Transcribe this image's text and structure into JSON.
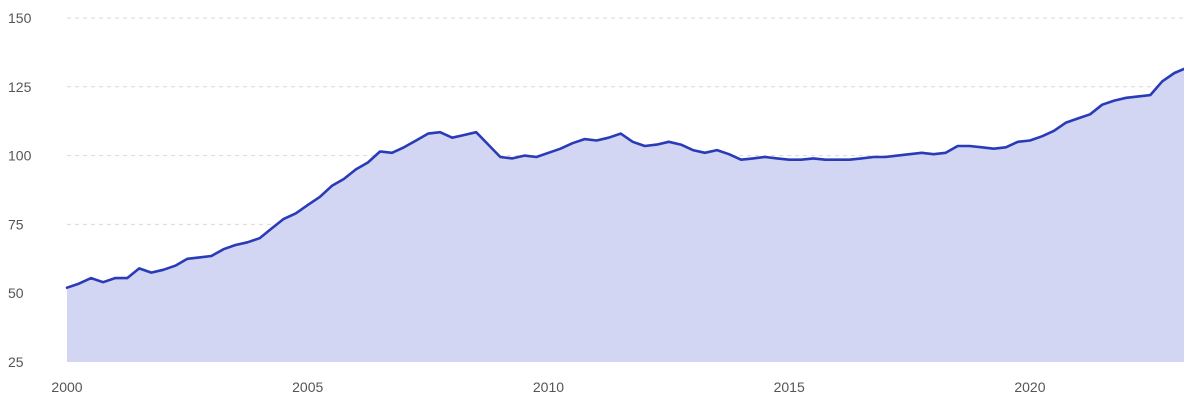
{
  "chart_data": {
    "type": "area",
    "title": "",
    "xlabel": "",
    "ylabel": "",
    "xlim": [
      2000,
      2023.2
    ],
    "ylim": [
      25,
      150
    ],
    "x_ticks": [
      2000,
      2005,
      2010,
      2015,
      2020
    ],
    "x_tick_labels": [
      "2000",
      "2005",
      "2010",
      "2015",
      "2020"
    ],
    "y_ticks": [
      25,
      50,
      75,
      100,
      125,
      150
    ],
    "y_tick_labels": [
      "25",
      "50",
      "75",
      "100",
      "125",
      "150"
    ],
    "grid": true,
    "colors": {
      "line": "#2a3bb8",
      "fill": "#d2d6f2",
      "grid": "#d9d9d9",
      "text": "#555555"
    },
    "series": [
      {
        "x": [
          2000.0,
          2000.25,
          2000.5,
          2000.75,
          2001.0,
          2001.25,
          2001.5,
          2001.75,
          2002.0,
          2002.25,
          2002.5,
          2002.75,
          2003.0,
          2003.25,
          2003.5,
          2003.75,
          2004.0,
          2004.25,
          2004.5,
          2004.75,
          2005.0,
          2005.25,
          2005.5,
          2005.75,
          2006.0,
          2006.25,
          2006.5,
          2006.75,
          2007.0,
          2007.25,
          2007.5,
          2007.75,
          2008.0,
          2008.25,
          2008.5,
          2008.75,
          2009.0,
          2009.25,
          2009.5,
          2009.75,
          2010.0,
          2010.25,
          2010.5,
          2010.75,
          2011.0,
          2011.25,
          2011.5,
          2011.75,
          2012.0,
          2012.25,
          2012.5,
          2012.75,
          2013.0,
          2013.25,
          2013.5,
          2013.75,
          2014.0,
          2014.25,
          2014.5,
          2014.75,
          2015.0,
          2015.25,
          2015.5,
          2015.75,
          2016.0,
          2016.25,
          2016.5,
          2016.75,
          2017.0,
          2017.25,
          2017.5,
          2017.75,
          2018.0,
          2018.25,
          2018.5,
          2018.75,
          2019.0,
          2019.25,
          2019.5,
          2019.75,
          2020.0,
          2020.25,
          2020.5,
          2020.75,
          2021.0,
          2021.25,
          2021.5,
          2021.75,
          2022.0,
          2022.25,
          2022.5,
          2022.75,
          2023.0,
          2023.2
        ],
        "values": [
          52.0,
          53.5,
          55.5,
          54.0,
          55.5,
          55.5,
          59.0,
          57.5,
          58.5,
          60.0,
          62.5,
          63.0,
          63.5,
          66.0,
          67.5,
          68.5,
          70.0,
          73.5,
          77.0,
          79.0,
          82.0,
          85.0,
          89.0,
          91.5,
          95.0,
          97.5,
          101.5,
          101.0,
          103.0,
          105.5,
          108.0,
          108.5,
          106.5,
          107.5,
          108.5,
          104.0,
          99.5,
          99.0,
          100.0,
          99.5,
          101.0,
          102.5,
          104.5,
          106.0,
          105.5,
          106.5,
          108.0,
          105.0,
          103.5,
          104.0,
          105.0,
          104.0,
          102.0,
          101.0,
          102.0,
          100.5,
          98.5,
          99.0,
          99.5,
          99.0,
          98.5,
          98.5,
          99.0,
          98.5,
          98.5,
          98.5,
          99.0,
          99.5,
          99.5,
          100.0,
          100.5,
          101.0,
          100.5,
          101.0,
          103.5,
          103.5,
          103.0,
          102.5,
          103.0,
          105.0,
          105.5,
          107.0,
          109.0,
          112.0,
          113.5,
          115.0,
          118.5,
          120.0,
          121.0,
          121.5,
          122.0,
          127.0,
          130.0,
          131.5
        ]
      }
    ]
  }
}
